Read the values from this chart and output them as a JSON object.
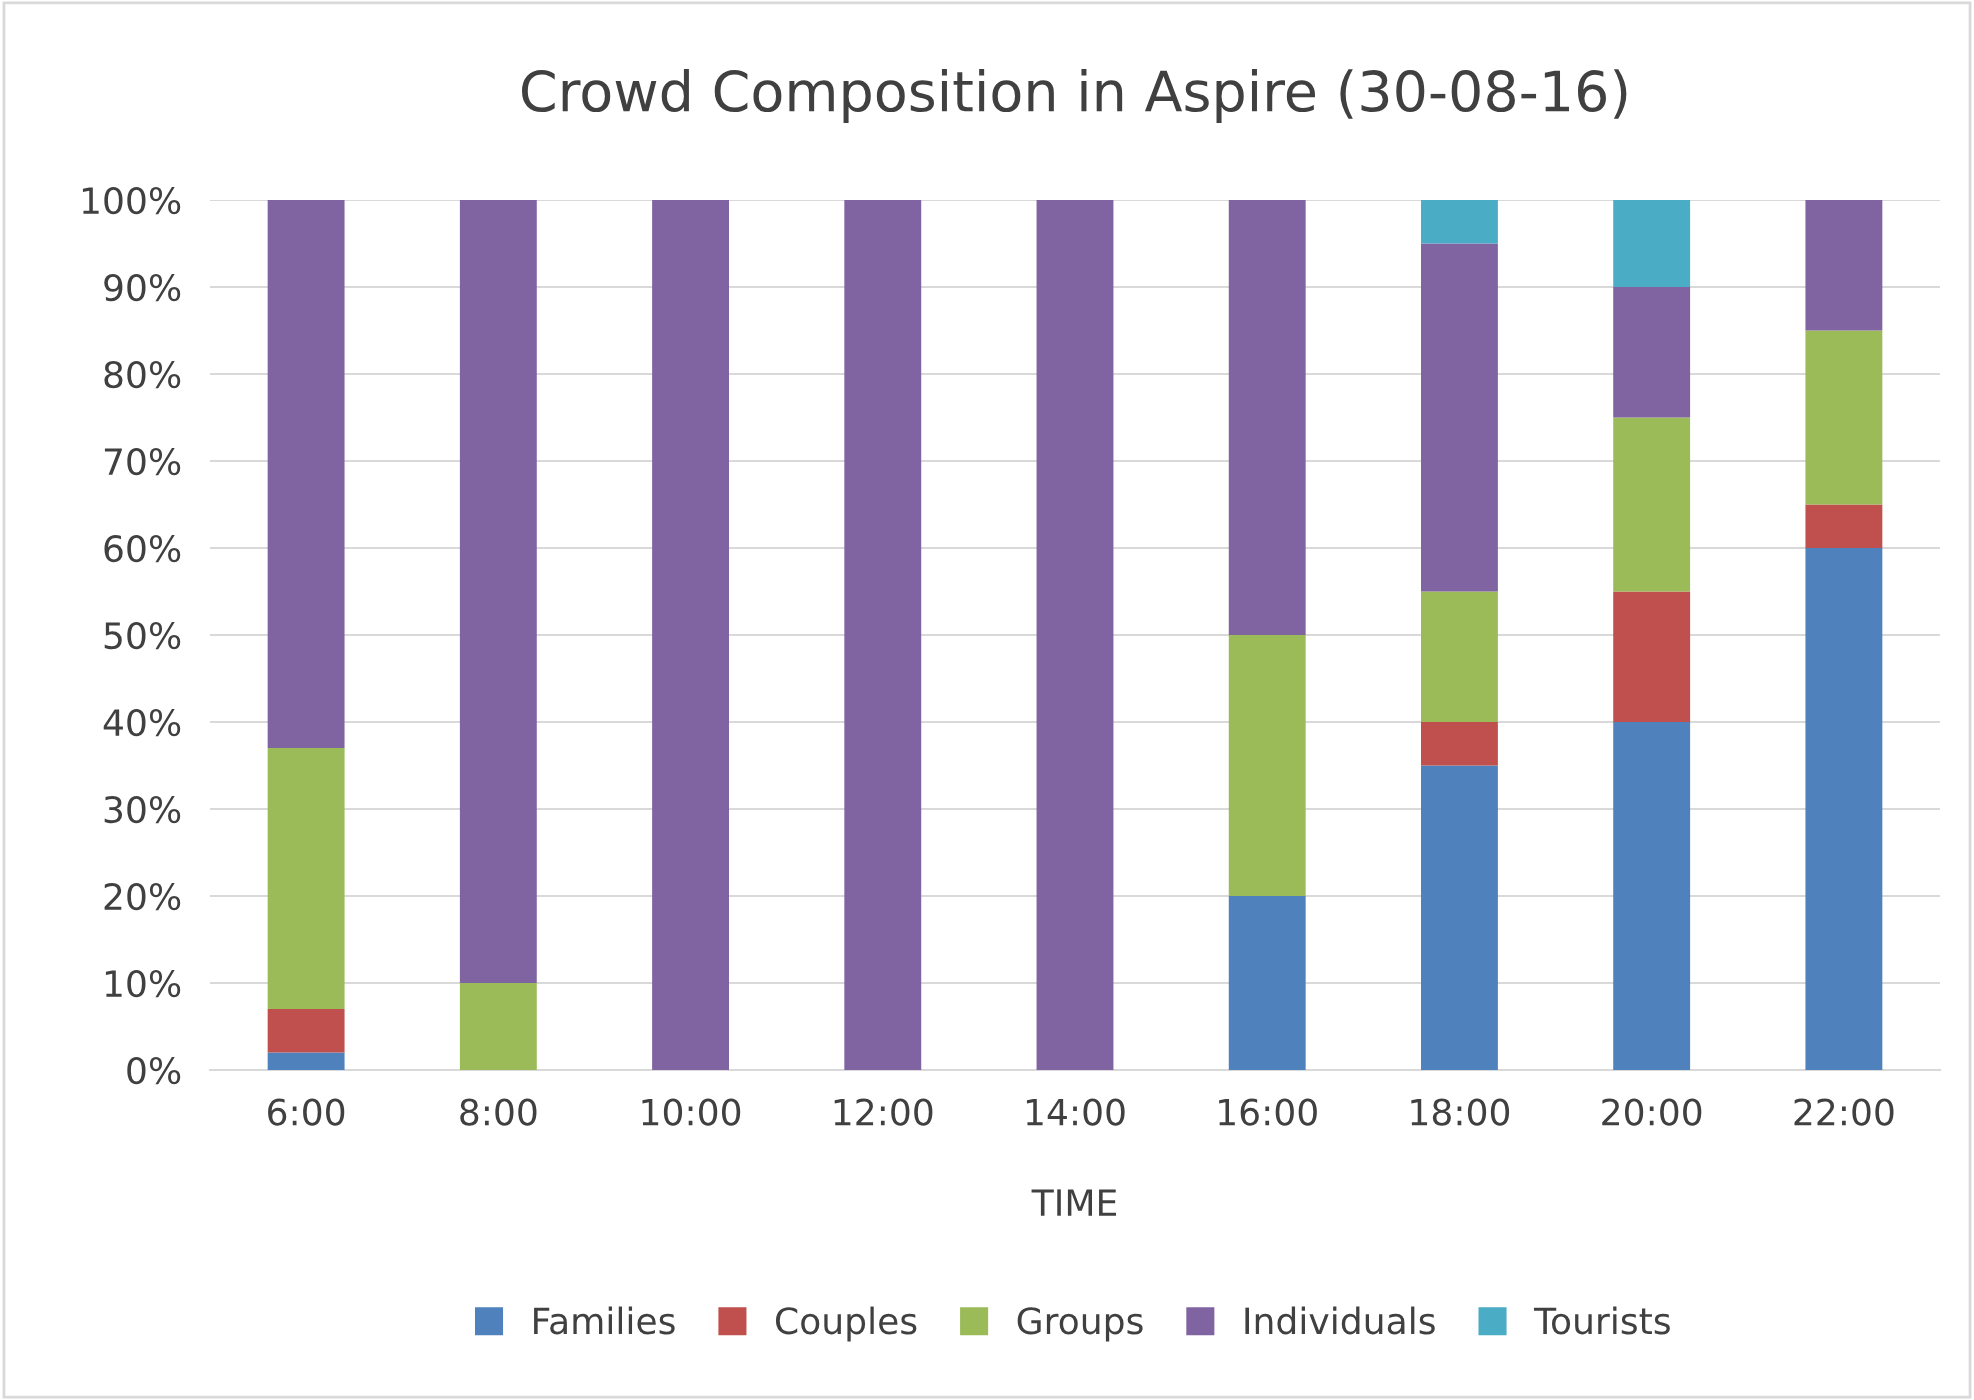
{
  "chart_data": {
    "type": "bar",
    "stacked": true,
    "title": "Crowd Composition in Aspire (30-08-16)",
    "xlabel": "TIME",
    "categories": [
      "6:00",
      "8:00",
      "10:00",
      "12:00",
      "14:00",
      "16:00",
      "18:00",
      "20:00",
      "22:00"
    ],
    "series": [
      {
        "name": "Families",
        "color": "#4f81bd",
        "values": [
          2,
          0,
          0,
          0,
          0,
          20,
          35,
          40,
          60
        ]
      },
      {
        "name": "Couples",
        "color": "#c0504d",
        "values": [
          5,
          0,
          0,
          0,
          0,
          0,
          5,
          15,
          5
        ]
      },
      {
        "name": "Groups",
        "color": "#9bbb59",
        "values": [
          30,
          10,
          0,
          0,
          0,
          30,
          15,
          20,
          20
        ]
      },
      {
        "name": "Individuals",
        "color": "#8064a2",
        "values": [
          63,
          90,
          100,
          100,
          100,
          50,
          40,
          15,
          15
        ]
      },
      {
        "name": "Tourists",
        "color": "#4bacc6",
        "values": [
          0,
          0,
          0,
          0,
          0,
          0,
          5,
          10,
          0
        ]
      }
    ],
    "ylim": [
      0,
      100
    ],
    "yticks": [
      {
        "value": 0,
        "label": "0%"
      },
      {
        "value": 10,
        "label": "10%"
      },
      {
        "value": 20,
        "label": "20%"
      },
      {
        "value": 30,
        "label": "30%"
      },
      {
        "value": 40,
        "label": "40%"
      },
      {
        "value": 50,
        "label": "50%"
      },
      {
        "value": 60,
        "label": "60%"
      },
      {
        "value": 70,
        "label": "70%"
      },
      {
        "value": 80,
        "label": "80%"
      },
      {
        "value": 90,
        "label": "90%"
      },
      {
        "value": 100,
        "label": "100%"
      }
    ],
    "grid": "y",
    "legend": "bottom"
  }
}
